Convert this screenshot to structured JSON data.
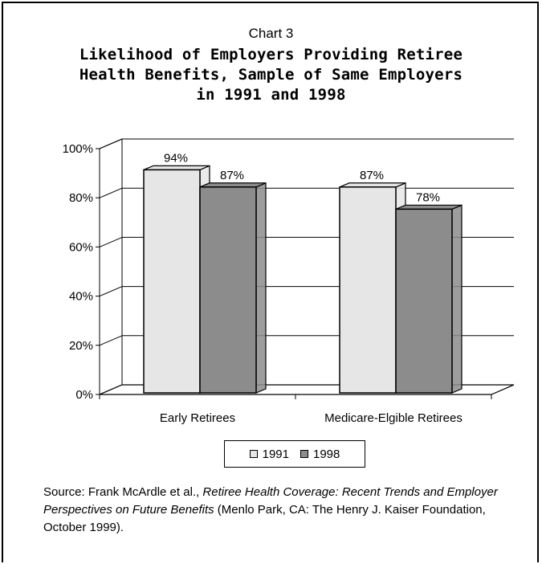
{
  "header": {
    "chart_number": "Chart 3",
    "title_lines": [
      "Likelihood of Employers Providing Retiree",
      "Health Benefits, Sample of Same Employers",
      "in 1991 and 1998"
    ]
  },
  "chart_data": {
    "type": "bar",
    "categories": [
      "Early Retirees",
      "Medicare-Elgible Retirees"
    ],
    "series": [
      {
        "name": "1991",
        "values": [
          94,
          87
        ],
        "labels": [
          "94%",
          "87%"
        ],
        "color": "#e6e6e6"
      },
      {
        "name": "1998",
        "values": [
          87,
          78
        ],
        "labels": [
          "87%",
          "78%"
        ],
        "color": "#8c8c8c"
      }
    ],
    "yticks": [
      "0%",
      "20%",
      "40%",
      "60%",
      "80%",
      "100%"
    ],
    "ylim": [
      0,
      100
    ],
    "grid": true,
    "legend_position": "bottom"
  },
  "source": {
    "prefix": "Source: Frank McArdle et al., ",
    "italic": "Retiree Health Coverage: Recent Trends and Employer Perspectives on Future Benefits",
    "suffix": " (Menlo Park, CA: The Henry J. Kaiser Foundation, October 1999)."
  }
}
